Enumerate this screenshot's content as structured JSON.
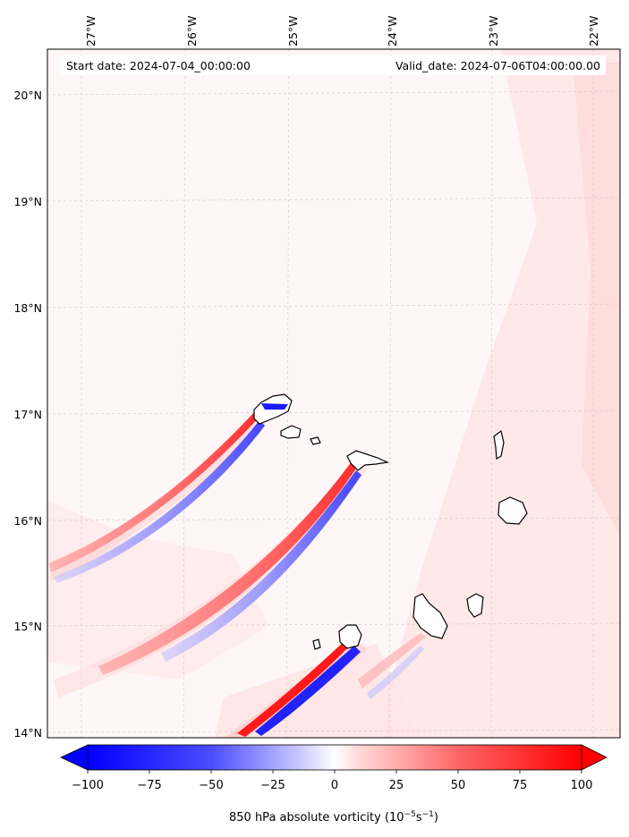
{
  "header": {
    "start_label": "Start date: 2024-07-04_00:00:00",
    "valid_label": "Valid_date: 2024-07-06T04:00:00.00"
  },
  "map": {
    "lon_labels": [
      "27°W",
      "26°W",
      "25°W",
      "24°W",
      "23°W",
      "22°W"
    ],
    "lat_labels": [
      "20°N",
      "19°N",
      "18°N",
      "17°N",
      "16°N",
      "15°N",
      "14°N"
    ],
    "field_colors": {
      "positive": "#ff0000",
      "negative": "#0000ff",
      "background": "#fff5f5"
    }
  },
  "colorbar": {
    "min": -100,
    "max": 100,
    "tick_labels": [
      "−100",
      "−75",
      "−50",
      "−25",
      "0",
      "25",
      "50",
      "75",
      "100"
    ],
    "title_prefix": "850 hPa absolute vorticity (10",
    "title_exp1": "−5",
    "title_mid": "s",
    "title_exp2": "−1",
    "title_suffix": ")"
  }
}
